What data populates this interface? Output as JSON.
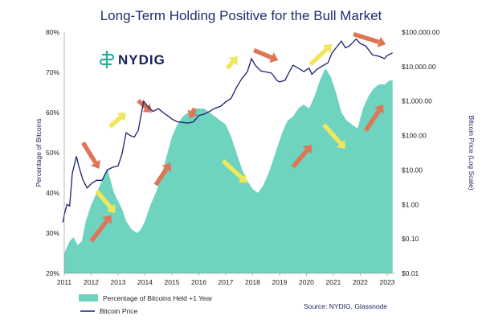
{
  "chart_data": {
    "type": "area",
    "title": "Long-Term Holding Positive for the Bull Market",
    "ylabel_left": "Percentage of Bitcoins",
    "ylabel_right": "Bitcoin Price (Log Scale)",
    "source": "Source: NYDIG, Glassnode",
    "logo": "NYDIG",
    "x_ticks": [
      "2011",
      "2012",
      "2013",
      "2014",
      "2015",
      "2016",
      "2017",
      "2018",
      "2019",
      "2020",
      "2021",
      "2022",
      "2023"
    ],
    "y_left_ticks": [
      "80%",
      "70%",
      "60%",
      "50%",
      "40%",
      "30%",
      "20%"
    ],
    "y_left_range": [
      20,
      80
    ],
    "y_right_ticks": [
      "$100,000.00",
      "$10,000.00",
      "$1,000.00",
      "$100.00",
      "$10.00",
      "$1.00",
      "$0.10",
      "$0.01"
    ],
    "y_right_range": [
      0.01,
      100000
    ],
    "y_right_scale": "log",
    "legend_position": "bottom-left",
    "grid": false,
    "colors": {
      "area": "#6ed3bf",
      "line": "#1a1f6e",
      "title": "#1f2d6e",
      "arrow_up": "#e07555",
      "arrow_down": "#f0e65a",
      "logo": "#2ab09a"
    },
    "series": [
      {
        "name": "Percentage of Bitcoins Held +1 Year",
        "type": "area",
        "axis": "left",
        "x": [
          2011.0,
          2011.2,
          2011.35,
          2011.5,
          2011.65,
          2011.8,
          2012.0,
          2012.2,
          2012.4,
          2012.6,
          2012.85,
          2013.0,
          2013.15,
          2013.3,
          2013.5,
          2013.7,
          2013.85,
          2014.0,
          2014.2,
          2014.4,
          2014.6,
          2014.8,
          2015.0,
          2015.2,
          2015.4,
          2015.6,
          2015.8,
          2016.0,
          2016.2,
          2016.4,
          2016.6,
          2016.8,
          2017.0,
          2017.2,
          2017.4,
          2017.6,
          2017.8,
          2018.0,
          2018.2,
          2018.4,
          2018.6,
          2018.75,
          2018.9,
          2019.1,
          2019.3,
          2019.5,
          2019.7,
          2019.9,
          2020.1,
          2020.3,
          2020.5,
          2020.7,
          2020.9,
          2021.1,
          2021.3,
          2021.5,
          2021.7,
          2021.9,
          2022.1,
          2022.3,
          2022.5,
          2022.7,
          2022.9,
          2023.1,
          2023.2
        ],
        "values": [
          25,
          28,
          29,
          27,
          28,
          33,
          37,
          40,
          43,
          46,
          40,
          38,
          36,
          33,
          31,
          30,
          31,
          33,
          37,
          40,
          44,
          49,
          54,
          57,
          59,
          60,
          61,
          61,
          61,
          60,
          59,
          58,
          57,
          54,
          50,
          46,
          43,
          41,
          40,
          42,
          45,
          48,
          51,
          55,
          58,
          59,
          61,
          62,
          61,
          64,
          68,
          71,
          69,
          65,
          60,
          58,
          57,
          56,
          61,
          64,
          66,
          67,
          67,
          68,
          68
        ]
      },
      {
        "name": "Bitcoin Price",
        "type": "line",
        "axis": "right",
        "x": [
          2010.95,
          2011.0,
          2011.1,
          2011.2,
          2011.3,
          2011.45,
          2011.55,
          2011.7,
          2011.85,
          2012.0,
          2012.2,
          2012.4,
          2012.6,
          2012.8,
          2013.0,
          2013.15,
          2013.3,
          2013.45,
          2013.6,
          2013.75,
          2013.9,
          2013.95,
          2014.1,
          2014.3,
          2014.5,
          2014.7,
          2014.9,
          2015.0,
          2015.2,
          2015.4,
          2015.6,
          2015.8,
          2016.0,
          2016.2,
          2016.4,
          2016.6,
          2016.8,
          2017.0,
          2017.2,
          2017.4,
          2017.6,
          2017.8,
          2017.96,
          2018.1,
          2018.3,
          2018.5,
          2018.7,
          2018.9,
          2019.0,
          2019.2,
          2019.4,
          2019.5,
          2019.7,
          2019.9,
          2020.1,
          2020.2,
          2020.4,
          2020.6,
          2020.8,
          2020.95,
          2021.1,
          2021.3,
          2021.45,
          2021.6,
          2021.85,
          2022.0,
          2022.2,
          2022.45,
          2022.7,
          2022.9,
          2023.0,
          2023.2
        ],
        "values": [
          0.3,
          0.5,
          1,
          0.9,
          8,
          25,
          12,
          5,
          3,
          4,
          5,
          5,
          10,
          12,
          13,
          30,
          120,
          100,
          90,
          140,
          600,
          1000,
          700,
          500,
          600,
          450,
          350,
          300,
          250,
          240,
          230,
          250,
          380,
          420,
          500,
          620,
          700,
          950,
          1200,
          2500,
          4500,
          7000,
          17000,
          11000,
          7500,
          7000,
          6500,
          4000,
          3600,
          4000,
          8000,
          11000,
          9000,
          7200,
          9000,
          6000,
          8500,
          10500,
          13000,
          25000,
          35000,
          55000,
          35000,
          40000,
          63000,
          47000,
          40000,
          22000,
          20000,
          17000,
          21000,
          25000
        ]
      }
    ],
    "arrows": [
      {
        "color": "up",
        "x1": 2011.7,
        "y1": 52.5,
        "x2": 2012.3,
        "y2": 46
      },
      {
        "color": "down",
        "x1": 2012.7,
        "y1": 56.5,
        "x2": 2013.3,
        "y2": 60
      },
      {
        "color": "up",
        "x1": 2013.75,
        "y1": 63,
        "x2": 2014.25,
        "y2": 60
      },
      {
        "color": "up",
        "x1": 2015.85,
        "y1": 61,
        "x2": 2015.65,
        "y2": 58.5
      },
      {
        "color": "down",
        "x1": 2017.05,
        "y1": 71,
        "x2": 2017.45,
        "y2": 74
      },
      {
        "color": "up",
        "x1": 2018.05,
        "y1": 75.5,
        "x2": 2018.95,
        "y2": 73
      },
      {
        "color": "down",
        "x1": 2020.15,
        "y1": 72,
        "x2": 2020.95,
        "y2": 77
      },
      {
        "color": "up",
        "x1": 2021.75,
        "y1": 79.5,
        "x2": 2022.95,
        "y2": 77
      },
      {
        "color": "down",
        "x1": 2012.2,
        "y1": 40.5,
        "x2": 2012.9,
        "y2": 35
      },
      {
        "color": "up",
        "x1": 2012.0,
        "y1": 28,
        "x2": 2012.75,
        "y2": 34.5
      },
      {
        "color": "up",
        "x1": 2014.4,
        "y1": 42,
        "x2": 2014.95,
        "y2": 47.5
      },
      {
        "color": "down",
        "x1": 2016.9,
        "y1": 48,
        "x2": 2017.8,
        "y2": 42.5
      },
      {
        "color": "up",
        "x1": 2019.5,
        "y1": 46.5,
        "x2": 2020.2,
        "y2": 52
      },
      {
        "color": "down",
        "x1": 2020.65,
        "y1": 57,
        "x2": 2021.45,
        "y2": 51
      },
      {
        "color": "up",
        "x1": 2022.2,
        "y1": 55.5,
        "x2": 2022.85,
        "y2": 62
      }
    ]
  }
}
